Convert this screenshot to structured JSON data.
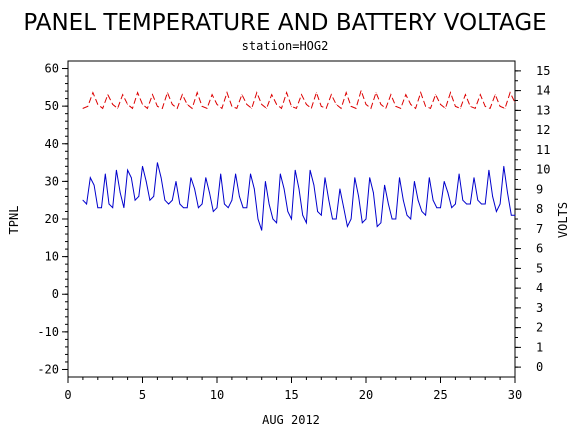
{
  "chart_data": {
    "type": "line",
    "title": "PANEL TEMPERATURE AND BATTERY VOLTAGE",
    "subtitle": "station=HOG2",
    "xlabel": "AUG 2012",
    "ylabel_left": "TPNL",
    "ylabel_right": "VOLTS",
    "xlim": [
      0,
      30
    ],
    "ylim_left": [
      -22,
      62
    ],
    "ylim_right": [
      -0.5,
      15.5
    ],
    "x_ticks": [
      0,
      5,
      10,
      15,
      20,
      25,
      30
    ],
    "y_ticks_left": [
      -20,
      -10,
      0,
      10,
      20,
      30,
      40,
      50,
      60
    ],
    "y_ticks_right": [
      0,
      1,
      2,
      3,
      4,
      5,
      6,
      7,
      8,
      9,
      10,
      11,
      12,
      13,
      14,
      15
    ],
    "grid": false,
    "colors": {
      "temperature": "#0000cc",
      "voltage": "#dd0000",
      "axes": "#000000"
    },
    "series": [
      {
        "axis": "left",
        "line_style": "solid",
        "x": [
          1.0,
          1.25,
          1.5,
          1.75,
          2.0,
          2.25,
          2.5,
          2.75,
          3.0,
          3.25,
          3.5,
          3.75,
          4.0,
          4.25,
          4.5,
          4.75,
          5.0,
          5.25,
          5.5,
          5.75,
          6.0,
          6.25,
          6.5,
          6.75,
          7.0,
          7.25,
          7.5,
          7.75,
          8.0,
          8.25,
          8.5,
          8.75,
          9.0,
          9.25,
          9.5,
          9.75,
          10.0,
          10.25,
          10.5,
          10.75,
          11.0,
          11.25,
          11.5,
          11.75,
          12.0,
          12.25,
          12.5,
          12.75,
          13.0,
          13.25,
          13.5,
          13.75,
          14.0,
          14.25,
          14.5,
          14.75,
          15.0,
          15.25,
          15.5,
          15.75,
          16.0,
          16.25,
          16.5,
          16.75,
          17.0,
          17.25,
          17.5,
          17.75,
          18.0,
          18.25,
          18.5,
          18.75,
          19.0,
          19.25,
          19.5,
          19.75,
          20.0,
          20.25,
          20.5,
          20.75,
          21.0,
          21.25,
          21.5,
          21.75,
          22.0,
          22.25,
          22.5,
          22.75,
          23.0,
          23.25,
          23.5,
          23.75,
          24.0,
          24.25,
          24.5,
          24.75,
          25.0,
          25.25,
          25.5,
          25.75,
          26.0,
          26.25,
          26.5,
          26.75,
          27.0,
          27.25,
          27.5,
          27.75,
          28.0,
          28.25,
          28.5,
          28.75,
          29.0,
          29.25,
          29.5,
          29.75,
          30.0
        ],
        "values": [
          25,
          24,
          31,
          29,
          23,
          23,
          32,
          24,
          23,
          33,
          27,
          23,
          33,
          31,
          25,
          26,
          34,
          30,
          25,
          26,
          35,
          31,
          25,
          24,
          25,
          30,
          24,
          23,
          23,
          31,
          28,
          23,
          24,
          31,
          27,
          22,
          23,
          32,
          24,
          23,
          25,
          32,
          26,
          23,
          23,
          32,
          28,
          20,
          17,
          30,
          24,
          20,
          19,
          32,
          28,
          22,
          20,
          33,
          28,
          21,
          19,
          33,
          29,
          22,
          21,
          31,
          25,
          20,
          20,
          28,
          23,
          18,
          20,
          31,
          26,
          19,
          20,
          31,
          27,
          18,
          19,
          29,
          24,
          20,
          20,
          31,
          25,
          21,
          20,
          30,
          25,
          22,
          21,
          31,
          25,
          23,
          23,
          30,
          27,
          23,
          24,
          32,
          25,
          24,
          24,
          31,
          25,
          24,
          24,
          33,
          26,
          22,
          24,
          34,
          27,
          21,
          21
        ]
      },
      {
        "axis": "right",
        "line_style": "dashed",
        "x": [
          1.0,
          1.33,
          1.67,
          2.0,
          2.33,
          2.67,
          3.0,
          3.33,
          3.67,
          4.0,
          4.33,
          4.67,
          5.0,
          5.33,
          5.67,
          6.0,
          6.33,
          6.67,
          7.0,
          7.33,
          7.67,
          8.0,
          8.33,
          8.67,
          9.0,
          9.33,
          9.67,
          10.0,
          10.33,
          10.67,
          11.0,
          11.33,
          11.67,
          12.0,
          12.33,
          12.67,
          13.0,
          13.33,
          13.67,
          14.0,
          14.33,
          14.67,
          15.0,
          15.33,
          15.67,
          16.0,
          16.33,
          16.67,
          17.0,
          17.33,
          17.67,
          18.0,
          18.33,
          18.67,
          19.0,
          19.33,
          19.67,
          20.0,
          20.33,
          20.67,
          21.0,
          21.33,
          21.67,
          22.0,
          22.33,
          22.67,
          23.0,
          23.33,
          23.67,
          24.0,
          24.33,
          24.67,
          25.0,
          25.33,
          25.67,
          26.0,
          26.33,
          26.67,
          27.0,
          27.33,
          27.67,
          28.0,
          28.33,
          28.67,
          29.0,
          29.33,
          29.67,
          30.0
        ],
        "values": [
          13.1,
          13.2,
          13.9,
          13.3,
          13.1,
          13.8,
          13.3,
          13.1,
          13.8,
          13.3,
          13.1,
          13.9,
          13.3,
          13.1,
          13.8,
          13.2,
          13.1,
          13.9,
          13.3,
          13.1,
          13.8,
          13.3,
          13.1,
          13.9,
          13.2,
          13.1,
          13.8,
          13.3,
          13.1,
          13.9,
          13.2,
          13.1,
          13.8,
          13.3,
          13.1,
          13.9,
          13.3,
          13.1,
          13.8,
          13.3,
          13.1,
          13.9,
          13.2,
          13.1,
          13.8,
          13.3,
          13.1,
          13.9,
          13.2,
          13.1,
          13.8,
          13.3,
          13.1,
          13.9,
          13.2,
          13.1,
          14.0,
          13.3,
          13.1,
          13.9,
          13.3,
          13.1,
          13.8,
          13.2,
          13.1,
          13.8,
          13.3,
          13.1,
          13.9,
          13.2,
          13.1,
          13.8,
          13.3,
          13.1,
          13.9,
          13.2,
          13.1,
          13.8,
          13.2,
          13.1,
          13.8,
          13.2,
          13.1,
          13.8,
          13.2,
          13.1,
          13.9,
          13.4
        ]
      }
    ]
  }
}
